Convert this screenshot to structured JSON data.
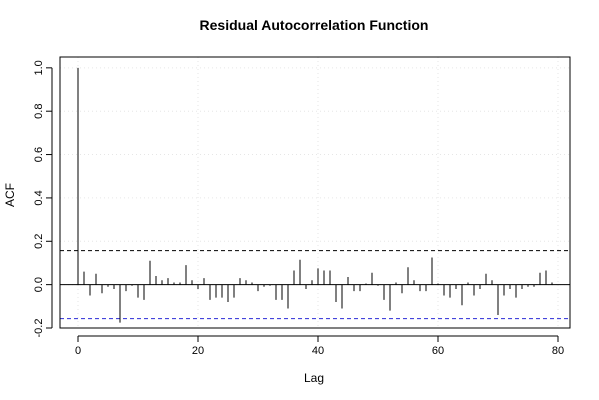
{
  "chart_data": {
    "type": "bar",
    "title": "Residual Autocorrelation Function",
    "xlabel": "Lag",
    "ylabel": "ACF",
    "xlim": [
      -3,
      82
    ],
    "ylim": [
      -0.2,
      1.05
    ],
    "xticks": [
      0,
      20,
      40,
      60,
      80
    ],
    "xtick_labels": [
      "0",
      "20",
      "40",
      "60",
      "80"
    ],
    "yticks": [
      -0.2,
      0.0,
      0.2,
      0.4,
      0.6,
      0.8,
      1.0
    ],
    "ytick_labels": [
      "-0.2",
      "0.0",
      "0.2",
      "0.4",
      "0.6",
      "0.8",
      "1.0"
    ],
    "grid": true,
    "zero_line_color": "#000000",
    "bar_color": "#000000",
    "conf_upper": 0.157,
    "conf_lower": -0.157,
    "conf_upper_color": "#000000",
    "conf_lower_color": "#2b2bd6",
    "lags": [
      0,
      1,
      2,
      3,
      4,
      5,
      6,
      7,
      8,
      9,
      10,
      11,
      12,
      13,
      14,
      15,
      16,
      17,
      18,
      19,
      20,
      21,
      22,
      23,
      24,
      25,
      26,
      27,
      28,
      29,
      30,
      31,
      32,
      33,
      34,
      35,
      36,
      37,
      38,
      39,
      40,
      41,
      42,
      43,
      44,
      45,
      46,
      47,
      48,
      49,
      50,
      51,
      52,
      53,
      54,
      55,
      56,
      57,
      58,
      59,
      60,
      61,
      62,
      63,
      64,
      65,
      66,
      67,
      68,
      69,
      70,
      71,
      72,
      73,
      74,
      75,
      76,
      77,
      78,
      79
    ],
    "values": [
      1.0,
      0.06,
      -0.05,
      0.05,
      -0.04,
      -0.01,
      -0.02,
      -0.175,
      -0.03,
      -0.005,
      -0.06,
      -0.07,
      0.11,
      0.04,
      0.02,
      0.03,
      0.01,
      0.01,
      0.09,
      0.02,
      -0.02,
      0.03,
      -0.07,
      -0.06,
      -0.06,
      -0.08,
      -0.06,
      0.03,
      0.02,
      0.01,
      -0.03,
      -0.01,
      -0.005,
      -0.07,
      -0.07,
      -0.11,
      0.065,
      0.115,
      -0.02,
      0.02,
      0.075,
      0.065,
      0.065,
      -0.08,
      -0.11,
      0.035,
      -0.03,
      -0.03,
      0.005,
      0.055,
      -0.005,
      -0.07,
      -0.12,
      0.01,
      -0.04,
      0.08,
      0.02,
      -0.03,
      -0.03,
      0.125,
      0.005,
      -0.05,
      -0.06,
      -0.02,
      -0.095,
      0.01,
      -0.05,
      -0.02,
      0.05,
      0.02,
      -0.14,
      -0.05,
      -0.02,
      -0.06,
      -0.02,
      -0.01,
      -0.01,
      0.055,
      0.065,
      0.01
    ]
  }
}
